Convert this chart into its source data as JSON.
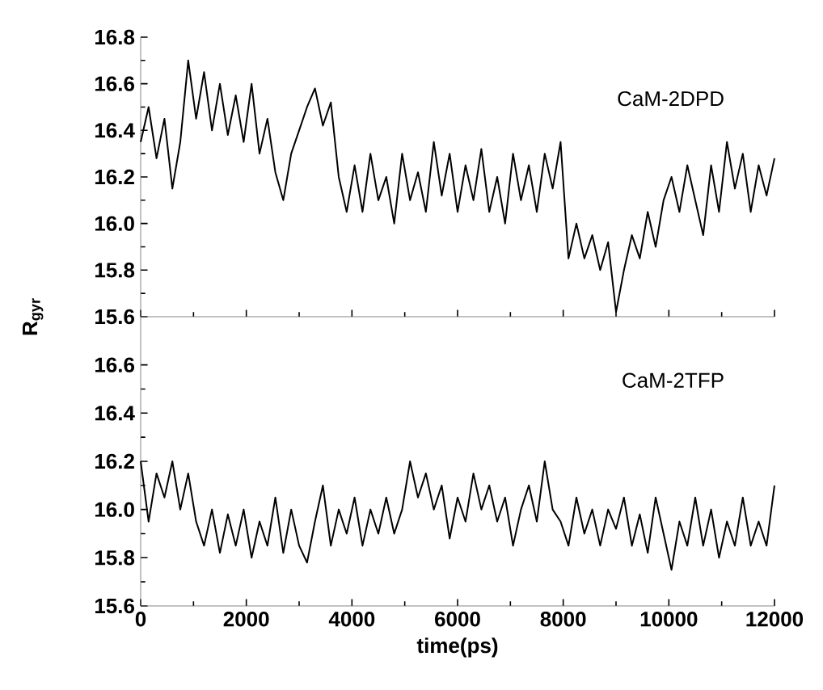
{
  "chart_data": [
    {
      "type": "line",
      "annotations": [
        "CaM-2DPD"
      ],
      "tick_labels": "y",
      "xlim": [
        0,
        12000
      ],
      "xticks": [
        0,
        2000,
        4000,
        6000,
        8000,
        10000,
        12000
      ],
      "ylim": [
        15.6,
        16.8
      ],
      "yticks": [
        15.6,
        15.8,
        {
          "value": 16,
          "label": "16.0"
        },
        16.2,
        16.4,
        16.6,
        16.8
      ],
      "x": [
        0,
        150,
        300,
        450,
        600,
        750,
        900,
        1050,
        1200,
        1350,
        1500,
        1650,
        1800,
        1950,
        2100,
        2250,
        2400,
        2550,
        2700,
        2850,
        3000,
        3150,
        3300,
        3450,
        3600,
        3750,
        3900,
        4050,
        4200,
        4350,
        4500,
        4650,
        4800,
        4950,
        5100,
        5250,
        5400,
        5550,
        5700,
        5850,
        6000,
        6150,
        6300,
        6450,
        6600,
        6750,
        6900,
        7050,
        7200,
        7350,
        7500,
        7650,
        7800,
        7950,
        8100,
        8250,
        8400,
        8550,
        8700,
        8850,
        9000,
        9150,
        9300,
        9450,
        9600,
        9750,
        9900,
        10050,
        10200,
        10350,
        10500,
        10650,
        10800,
        10950,
        11100,
        11250,
        11400,
        11550,
        11700,
        11850,
        12000
      ],
      "series": [
        {
          "color": "#000000",
          "values": [
            16.35,
            16.5,
            16.28,
            16.45,
            16.15,
            16.35,
            16.7,
            16.45,
            16.65,
            16.4,
            16.6,
            16.38,
            16.55,
            16.35,
            16.6,
            16.3,
            16.45,
            16.22,
            16.1,
            16.3,
            16.4,
            16.5,
            16.58,
            16.42,
            16.52,
            16.2,
            16.05,
            16.25,
            16.05,
            16.3,
            16.1,
            16.2,
            16.0,
            16.3,
            16.1,
            16.22,
            16.05,
            16.35,
            16.12,
            16.3,
            16.05,
            16.25,
            16.1,
            16.32,
            16.05,
            16.2,
            16.0,
            16.3,
            16.1,
            16.25,
            16.05,
            16.3,
            16.15,
            16.35,
            15.85,
            16.0,
            15.85,
            15.95,
            15.8,
            15.92,
            15.62,
            15.8,
            15.95,
            15.85,
            16.05,
            15.9,
            16.1,
            16.2,
            16.05,
            16.25,
            16.1,
            15.95,
            16.25,
            16.05,
            16.35,
            16.15,
            16.3,
            16.05,
            16.25,
            16.12,
            16.28
          ]
        }
      ]
    },
    {
      "type": "line",
      "annotations": [
        "CaM-2TFP"
      ],
      "xlabel": "time(ps)",
      "ylabel": "R$_{gyr}$",
      "xlim": [
        0,
        12000
      ],
      "xticks": [
        0,
        2000,
        4000,
        6000,
        8000,
        10000,
        12000
      ],
      "ylim": [
        15.6,
        16.8
      ],
      "yticks": [
        15.6,
        15.8,
        {
          "value": 16,
          "label": "16.0"
        },
        16.2,
        16.4,
        16.6
      ],
      "x": [
        0,
        150,
        300,
        450,
        600,
        750,
        900,
        1050,
        1200,
        1350,
        1500,
        1650,
        1800,
        1950,
        2100,
        2250,
        2400,
        2550,
        2700,
        2850,
        3000,
        3150,
        3300,
        3450,
        3600,
        3750,
        3900,
        4050,
        4200,
        4350,
        4500,
        4650,
        4800,
        4950,
        5100,
        5250,
        5400,
        5550,
        5700,
        5850,
        6000,
        6150,
        6300,
        6450,
        6600,
        6750,
        6900,
        7050,
        7200,
        7350,
        7500,
        7650,
        7800,
        7950,
        8100,
        8250,
        8400,
        8550,
        8700,
        8850,
        9000,
        9150,
        9300,
        9450,
        9600,
        9750,
        9900,
        10050,
        10200,
        10350,
        10500,
        10650,
        10800,
        10950,
        11100,
        11250,
        11400,
        11550,
        11700,
        11850,
        12000
      ],
      "series": [
        {
          "color": "#000000",
          "values": [
            16.2,
            15.95,
            16.15,
            16.05,
            16.2,
            16.0,
            16.15,
            15.95,
            15.85,
            16.0,
            15.82,
            15.98,
            15.85,
            16.0,
            15.8,
            15.95,
            15.85,
            16.05,
            15.82,
            16.0,
            15.85,
            15.78,
            15.95,
            16.1,
            15.85,
            16.0,
            15.9,
            16.05,
            15.85,
            16.0,
            15.9,
            16.05,
            15.9,
            16.0,
            16.2,
            16.05,
            16.15,
            16.0,
            16.1,
            15.88,
            16.05,
            15.95,
            16.15,
            16.0,
            16.1,
            15.95,
            16.05,
            15.85,
            16.0,
            16.1,
            15.95,
            16.2,
            16.0,
            15.95,
            15.85,
            16.05,
            15.9,
            16.0,
            15.85,
            16.0,
            15.92,
            16.05,
            15.85,
            15.98,
            15.82,
            16.05,
            15.9,
            15.75,
            15.95,
            15.85,
            16.05,
            15.85,
            16.0,
            15.8,
            15.95,
            15.85,
            16.05,
            15.85,
            15.95,
            15.85,
            16.1
          ]
        }
      ]
    }
  ]
}
